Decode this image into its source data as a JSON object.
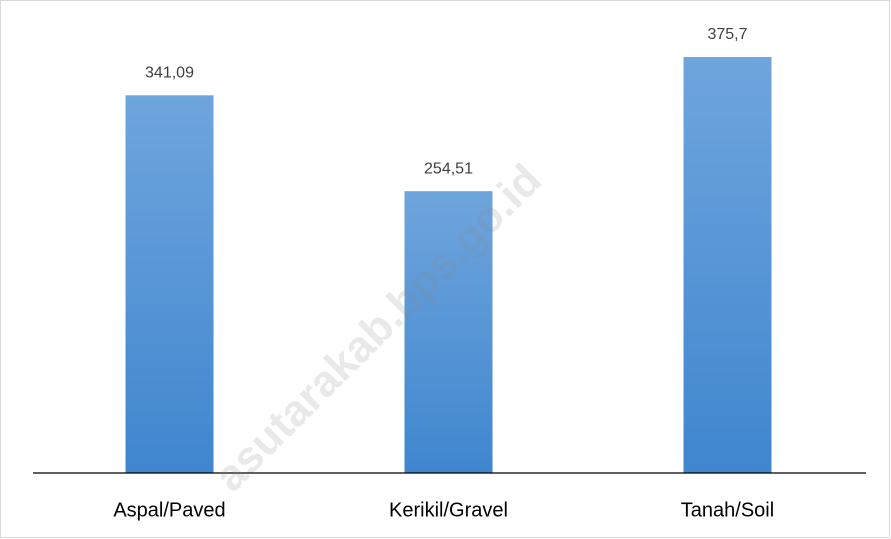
{
  "chart_data": {
    "type": "bar",
    "categories": [
      "Aspal/Paved",
      "Kerikil/Gravel",
      "Tanah/Soil"
    ],
    "values": [
      341.09,
      254.51,
      375.7
    ],
    "value_labels": [
      "341,09",
      "254,51",
      "375,7"
    ],
    "color": "#5b9bd5",
    "watermark": "asutarakab.bps.go.id"
  }
}
